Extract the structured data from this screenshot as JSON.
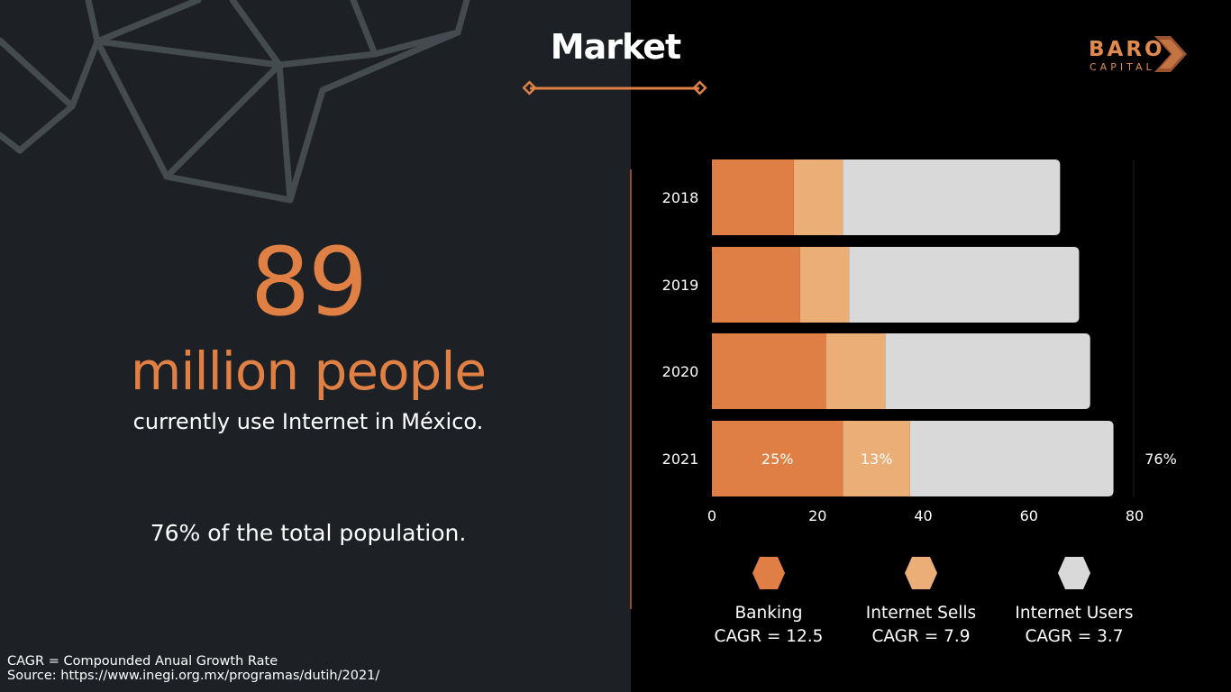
{
  "title": "Market",
  "logo": {
    "word": "BARO",
    "sub": "CAPITAL"
  },
  "headline": {
    "number": "89",
    "unit": "million people",
    "caption": "currently use Internet in México.",
    "share": "76% of the total population."
  },
  "footnotes": {
    "definition": "CAGR = Compounded Anual Growth Rate",
    "source": "Source: https://www.inegi.org.mx/programas/dutih/2021/"
  },
  "colors": {
    "banking": "#df7f45",
    "internet_sells": "#ecae77",
    "internet_users": "#d9d9d9",
    "accent": "#e08045"
  },
  "chart_data": {
    "type": "bar",
    "orientation": "horizontal",
    "stacked": true,
    "categories": [
      "2018",
      "2019",
      "2020",
      "2021"
    ],
    "series": [
      {
        "name": "Banking",
        "values": [
          15.5,
          16.7,
          21.6,
          24.8
        ]
      },
      {
        "name": "Internet Sells",
        "values": [
          9.3,
          9.3,
          11.2,
          12.7
        ]
      },
      {
        "name": "Internet Users",
        "values": [
          41.1,
          43.5,
          38.8,
          38.5
        ]
      }
    ],
    "data_labels": {
      "2021": [
        "25%",
        "13%",
        "76%"
      ]
    },
    "xlim": [
      0,
      80
    ],
    "xticks": [
      "0",
      "20",
      "40",
      "60",
      "80"
    ],
    "grid": false,
    "legend_placement": "bottom"
  },
  "legend": [
    {
      "name": "Banking",
      "cagr": "CAGR = 12.5"
    },
    {
      "name": "Internet Sells",
      "cagr": "CAGR = 7.9"
    },
    {
      "name": "Internet Users",
      "cagr": "CAGR = 3.7"
    }
  ]
}
